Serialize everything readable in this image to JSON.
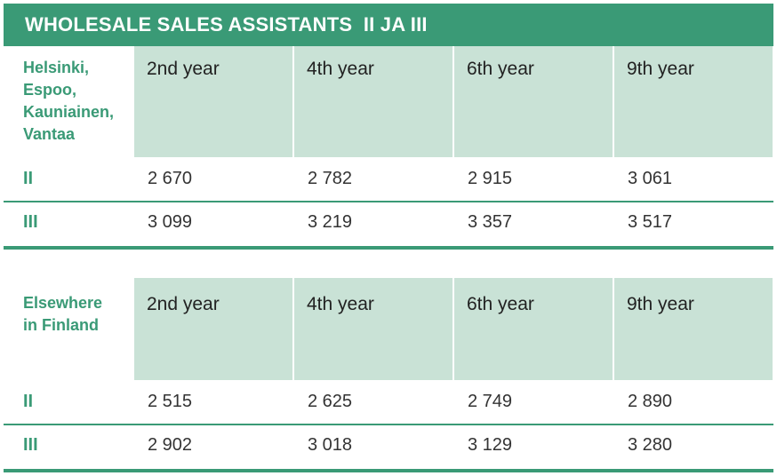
{
  "title": "WHOLESALE SALES ASSISTANTS  II JA III",
  "colors": {
    "accent": "#3a9a76",
    "header_fill": "#c9e2d6"
  },
  "sections": [
    {
      "region": "Helsinki,\nEspoo,\nKauniainen,\nVantaa",
      "headers": [
        "2nd year",
        "4th year",
        "6th year",
        "9th year"
      ],
      "rows": [
        {
          "label": "II",
          "values": [
            "2 670",
            "2 782",
            "2 915",
            "3 061"
          ]
        },
        {
          "label": "III",
          "values": [
            "3 099",
            "3 219",
            "3 357",
            "3 517"
          ]
        }
      ]
    },
    {
      "region": "Elsewhere\nin Finland",
      "headers": [
        "2nd year",
        "4th year",
        "6th year",
        "9th year"
      ],
      "rows": [
        {
          "label": "II",
          "values": [
            "2 515",
            "2 625",
            "2 749",
            "2 890"
          ]
        },
        {
          "label": "III",
          "values": [
            "2 902",
            "3 018",
            "3 129",
            "3 280"
          ]
        }
      ]
    }
  ]
}
